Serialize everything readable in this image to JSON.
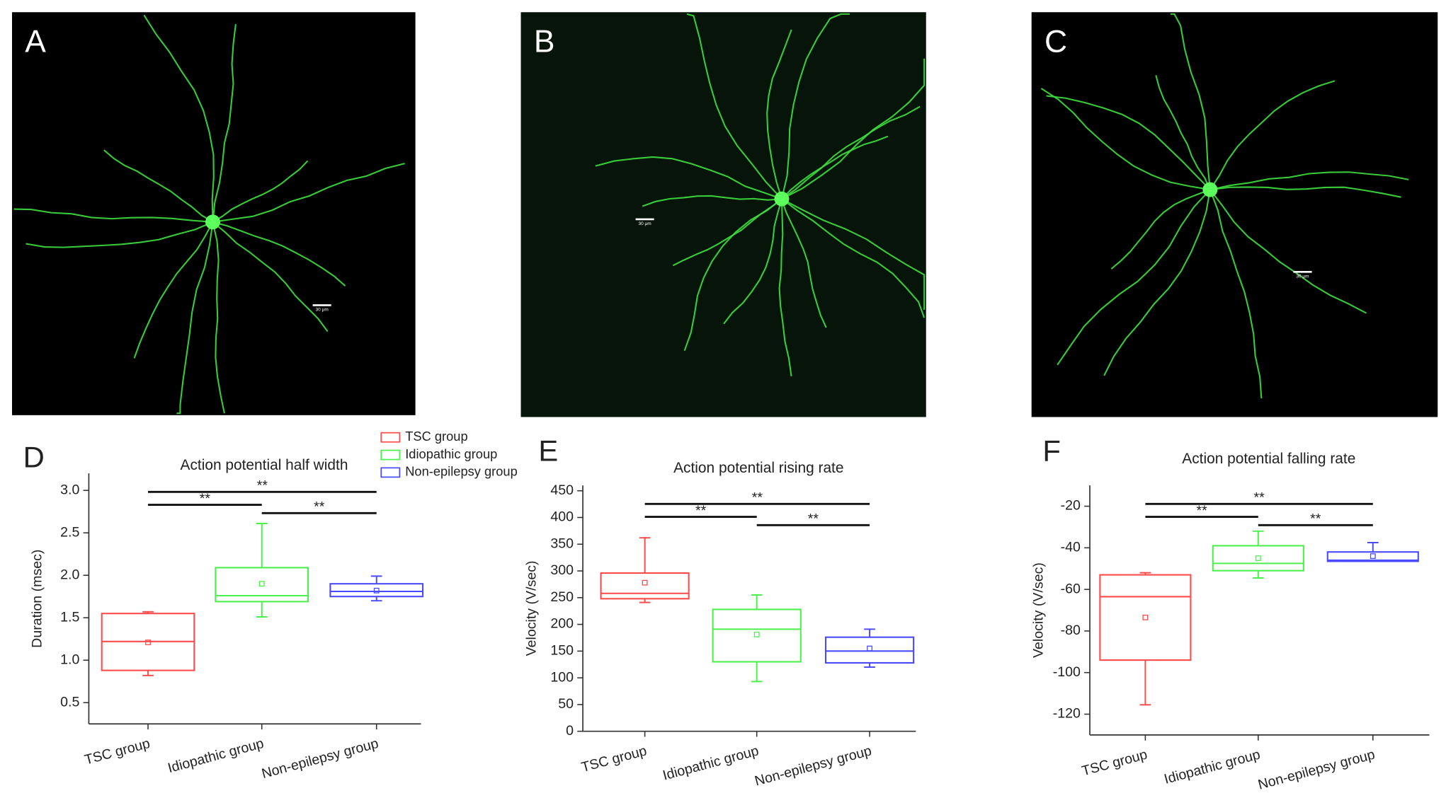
{
  "images": [
    {
      "panel": "A",
      "scale_bar": "30 μm"
    },
    {
      "panel": "B",
      "scale_bar": "30 μm"
    },
    {
      "panel": "C",
      "scale_bar": "30 μm"
    }
  ],
  "chart_data": [
    {
      "type": "box",
      "panel": "D",
      "title": "Action potential half width",
      "y_label": "Duration (msec)",
      "categories": [
        "TSC group",
        "Idiopathic group",
        "Non-epilepsy group"
      ],
      "colors": [
        "#ff4a4a",
        "#4cf04c",
        "#4a4aff"
      ],
      "min": [
        0.82,
        1.51,
        1.7
      ],
      "q1": [
        0.88,
        1.69,
        1.75
      ],
      "median": [
        1.22,
        1.76,
        1.81
      ],
      "q3": [
        1.55,
        2.09,
        1.9
      ],
      "max": [
        1.57,
        2.61,
        1.99
      ],
      "mean": [
        1.21,
        1.9,
        1.82
      ],
      "ylim": [
        0.25,
        3.2
      ],
      "yticks": [
        0.5,
        {
          "value": 1,
          "label": "1.0"
        },
        1.5,
        {
          "value": 2,
          "label": "2.0"
        },
        2.5,
        {
          "value": 3,
          "label": "3.0"
        }
      ],
      "legend": true,
      "annotations": [
        {
          "from": "TSC group",
          "to": "Non-epilepsy group",
          "label": "**"
        },
        {
          "from": "TSC group",
          "to": "Idiopathic group",
          "label": "**"
        },
        {
          "from": "Idiopathic group",
          "to": "Non-epilepsy group",
          "label": "**"
        }
      ]
    },
    {
      "type": "box",
      "panel": "E",
      "title": "Action potential rising rate",
      "y_label": "Velocity (V/sec)",
      "categories": [
        "TSC group",
        "Idiopathic group",
        "Non-epilepsy group"
      ],
      "colors": [
        "#ff4a4a",
        "#4cf04c",
        "#4a4aff"
      ],
      "min": [
        241,
        93,
        120
      ],
      "q1": [
        248,
        130,
        128
      ],
      "median": [
        258,
        191,
        150
      ],
      "q3": [
        296,
        228,
        176
      ],
      "max": [
        362,
        255,
        191
      ],
      "mean": [
        278,
        181,
        155
      ],
      "ylim": [
        0,
        460
      ],
      "yticks": [
        0,
        50,
        100,
        150,
        200,
        250,
        300,
        350,
        400,
        450
      ],
      "legend": false,
      "annotations": [
        {
          "from": "TSC group",
          "to": "Non-epilepsy group",
          "label": "**"
        },
        {
          "from": "TSC group",
          "to": "Idiopathic group",
          "label": "**"
        },
        {
          "from": "Idiopathic group",
          "to": "Non-epilepsy group",
          "label": "**"
        }
      ]
    },
    {
      "type": "box",
      "panel": "F",
      "title": "Action potential falling rate",
      "y_label": "Velocity (V/sec)",
      "categories": [
        "TSC group",
        "Idiopathic group",
        "Non-epilepsy group"
      ],
      "colors": [
        "#ff4a4a",
        "#4cf04c",
        "#4a4aff"
      ],
      "min": [
        -115.5,
        -54.5,
        -46.5
      ],
      "q1": [
        -94,
        -51,
        -46.5
      ],
      "median": [
        -63.5,
        -47.5,
        -46
      ],
      "q3": [
        -53,
        -39,
        -42
      ],
      "max": [
        -52,
        -32,
        -37.5
      ],
      "mean": [
        -73.5,
        -45,
        -44
      ],
      "ylim": [
        -130,
        -10
      ],
      "yticks": [
        -120,
        -100,
        -80,
        -60,
        -40,
        -20
      ],
      "legend": false,
      "annotations": [
        {
          "from": "TSC group",
          "to": "Non-epilepsy group",
          "label": "**"
        },
        {
          "from": "TSC group",
          "to": "Idiopathic group",
          "label": "**"
        },
        {
          "from": "Idiopathic group",
          "to": "Non-epilepsy group",
          "label": "**"
        }
      ]
    }
  ]
}
